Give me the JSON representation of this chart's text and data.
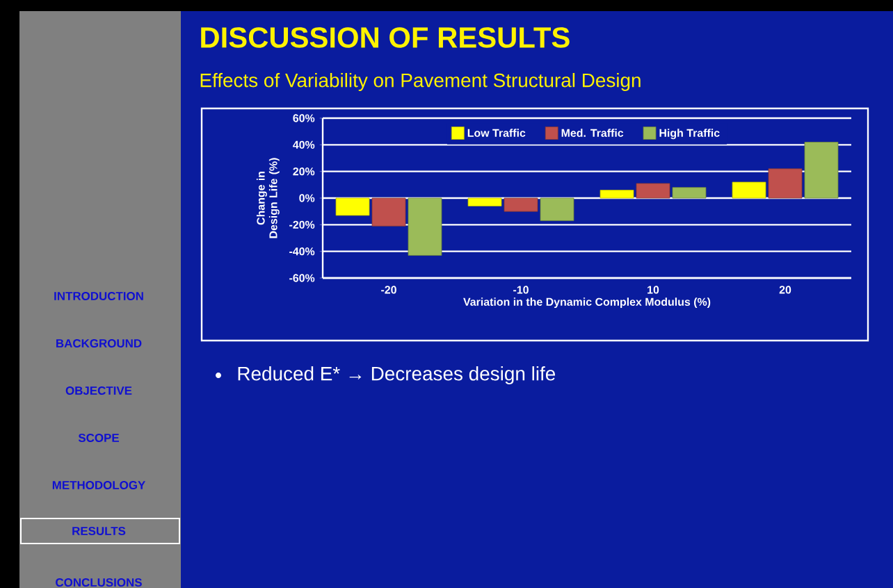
{
  "chart_data": {
    "type": "bar",
    "title": "DISCUSSION OF RESULTS",
    "subtitle": "Effects of Variability on Pavement Structural Design",
    "xlabel": "Variation in the Dynamic Complex Modulus (%)",
    "ylabel": "Change in Design Life (%)",
    "categories": [
      "-20",
      "-10",
      "10",
      "20"
    ],
    "series": [
      {
        "name": "Low Traffic",
        "color": "#ffff00",
        "values": [
          -13,
          -6,
          6,
          12
        ]
      },
      {
        "name": "Med. Traffic",
        "color": "#c0504d",
        "values": [
          -21,
          -10,
          11,
          22
        ]
      },
      {
        "name": "High Traffic",
        "color": "#9bbb59",
        "values": [
          -43,
          -17,
          8,
          42
        ]
      }
    ],
    "ylim": [
      -60,
      60
    ],
    "yticks": [
      {
        "value": -60,
        "label": "-60%"
      },
      {
        "value": -40,
        "label": "-40%"
      },
      {
        "value": -20,
        "label": "-20%"
      },
      {
        "value": 0,
        "label": "0%"
      },
      {
        "value": 20,
        "label": "20%"
      },
      {
        "value": 40,
        "label": "40%"
      },
      {
        "value": 60,
        "label": "60%"
      }
    ],
    "grid": "y",
    "legend": "top",
    "annotations": [
      "INTRODUCTION",
      "BACKGROUND",
      "OBJECTIVE",
      "SCOPE",
      "METHODOLOGY",
      "RESULTS",
      "CONCLUSIONS",
      "Reduced E* → Decreases design life"
    ]
  }
}
